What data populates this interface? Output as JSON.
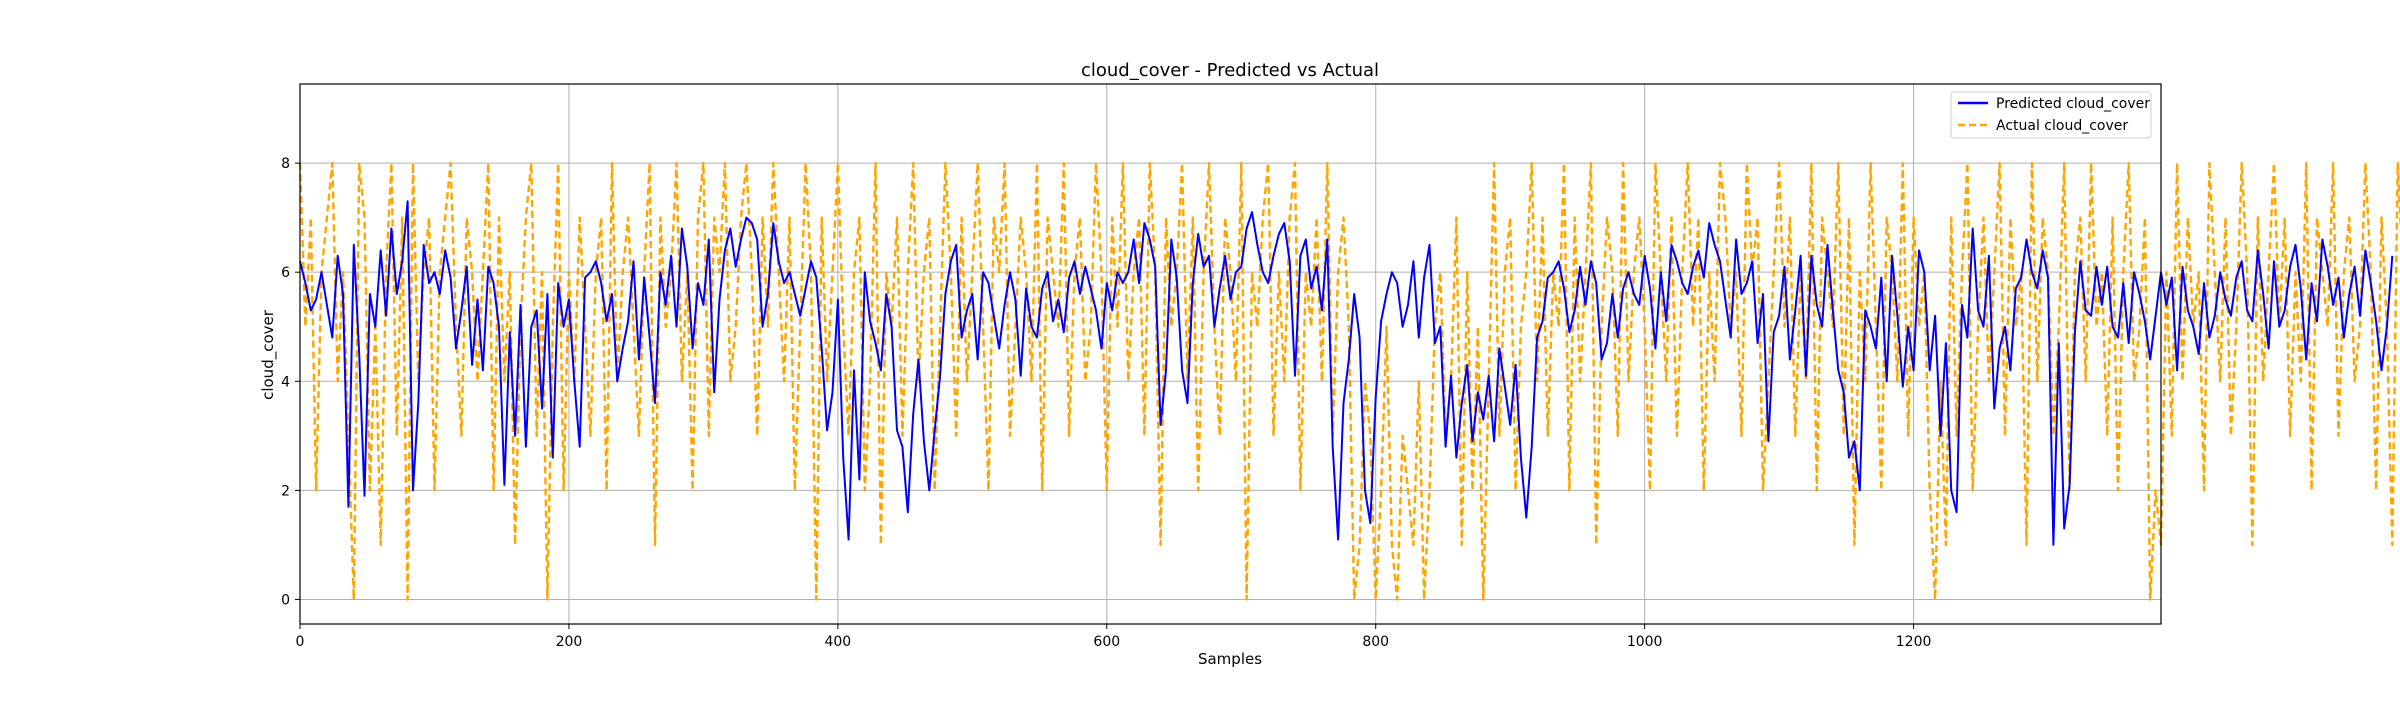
{
  "chart_data": {
    "type": "line",
    "title": "cloud_cover - Predicted vs Actual",
    "xlabel": "Samples",
    "ylabel": "cloud_cover",
    "xlim": [
      0,
      1384
    ],
    "ylim": [
      -0.45,
      9.45
    ],
    "x_ticks": [
      0,
      200,
      400,
      600,
      800,
      1000,
      1200
    ],
    "y_ticks": [
      0,
      2,
      4,
      6,
      8
    ],
    "grid": true,
    "legend_position": "top-right",
    "series": [
      {
        "name": "Predicted cloud_cover",
        "color": "#0000ff",
        "style": "solid",
        "x_step": 4,
        "values": [
          6.2,
          5.8,
          5.3,
          5.5,
          6.0,
          5.4,
          4.8,
          6.3,
          5.6,
          1.7,
          6.5,
          4.5,
          1.9,
          5.6,
          5.0,
          6.4,
          5.2,
          6.8,
          5.6,
          6.2,
          7.3,
          2.0,
          3.6,
          6.5,
          5.8,
          6.0,
          5.6,
          6.4,
          5.9,
          4.6,
          5.3,
          6.1,
          4.3,
          5.5,
          4.2,
          6.1,
          5.8,
          5.0,
          2.1,
          4.9,
          3.0,
          5.4,
          2.8,
          5.0,
          5.3,
          3.5,
          5.6,
          2.6,
          5.8,
          5.0,
          5.5,
          4.0,
          2.8,
          5.9,
          6.0,
          6.2,
          5.8,
          5.1,
          5.6,
          4.0,
          4.6,
          5.1,
          6.2,
          4.4,
          5.9,
          4.8,
          3.6,
          6.0,
          5.4,
          6.3,
          5.0,
          6.8,
          6.1,
          4.6,
          5.8,
          5.4,
          6.6,
          3.8,
          5.5,
          6.4,
          6.8,
          6.1,
          6.6,
          7.0,
          6.9,
          6.6,
          5.0,
          5.6,
          6.9,
          6.2,
          5.8,
          6.0,
          5.6,
          5.2,
          5.7,
          6.2,
          5.9,
          4.6,
          3.1,
          3.8,
          5.5,
          2.6,
          1.1,
          4.2,
          2.2,
          6.0,
          5.1,
          4.7,
          4.2,
          5.6,
          5.0,
          3.1,
          2.8,
          1.6,
          3.4,
          4.4,
          2.9,
          2.0,
          3.1,
          4.1,
          5.6,
          6.2,
          6.5,
          4.8,
          5.3,
          5.6,
          4.4,
          6.0,
          5.8,
          5.2,
          4.6,
          5.4,
          6.0,
          5.5,
          4.1,
          5.7,
          5.0,
          4.8,
          5.7,
          6.0,
          5.1,
          5.5,
          4.9,
          5.9,
          6.2,
          5.6,
          6.1,
          5.7,
          5.3,
          4.6,
          5.8,
          5.3,
          6.0,
          5.8,
          6.0,
          6.6,
          5.8,
          6.9,
          6.6,
          6.1,
          3.2,
          4.2,
          6.6,
          5.9,
          4.2,
          3.6,
          5.8,
          6.7,
          6.1,
          6.3,
          5.0,
          5.7,
          6.3,
          5.5,
          6.0,
          6.1,
          6.8,
          7.1,
          6.5,
          6.0,
          5.8,
          6.3,
          6.7,
          6.9,
          6.2,
          4.1,
          6.3,
          6.6,
          5.7,
          6.1,
          5.3,
          6.6,
          2.8,
          1.1,
          3.6,
          4.4,
          5.6,
          4.8,
          2.0,
          1.4,
          3.7,
          5.1,
          5.6,
          6.0,
          5.8,
          5.0,
          5.4,
          6.2,
          4.8,
          5.9,
          6.5,
          4.7,
          5.0,
          2.8,
          4.1,
          2.6,
          3.6,
          4.3,
          2.9,
          3.8,
          3.3,
          4.1,
          2.9,
          4.6,
          3.9,
          3.2,
          4.3,
          2.6,
          1.5,
          2.8,
          4.8,
          5.1,
          5.9,
          6.0,
          6.2,
          5.7,
          4.9,
          5.3,
          6.1,
          5.4,
          6.2,
          5.8,
          4.4,
          4.7,
          5.6,
          4.8,
          5.7,
          6.0,
          5.6,
          5.4,
          6.3,
          5.7,
          4.6,
          6.0,
          5.1,
          6.5,
          6.2,
          5.8,
          5.6,
          6.1,
          6.4,
          5.9,
          6.9,
          6.5,
          6.2,
          5.5,
          4.8,
          6.6,
          5.6,
          5.8,
          6.2,
          4.7,
          5.6,
          2.9,
          4.9,
          5.2,
          6.1,
          4.4,
          5.3,
          6.3,
          4.1,
          6.3,
          5.4,
          5.0,
          6.5,
          5.3,
          4.2,
          3.8,
          2.6,
          2.9,
          2.0,
          5.3,
          5.0,
          4.6,
          5.9,
          4.0,
          6.3,
          5.2,
          3.9,
          5.0,
          4.2,
          6.4,
          6.0,
          4.2,
          5.2,
          3.0,
          4.7,
          2.0,
          1.6,
          5.4,
          4.8,
          6.8,
          5.3,
          5.0,
          6.3,
          3.5,
          4.6,
          5.0,
          4.2,
          5.7,
          5.9,
          6.6,
          6.0,
          5.7,
          6.4,
          5.9,
          1.0,
          4.7,
          1.3,
          2.1,
          4.9,
          6.2,
          5.3,
          5.2,
          6.1,
          5.4,
          6.1,
          5.0,
          4.8,
          5.8,
          4.7,
          6.0,
          5.6,
          5.1,
          4.4,
          5.2,
          6.0,
          5.4,
          5.9,
          4.2,
          6.1,
          5.3,
          5.0,
          4.5,
          5.8,
          4.8,
          5.2,
          6.0,
          5.5,
          5.2,
          5.9,
          6.2,
          5.3,
          5.1,
          6.4,
          5.6,
          4.6,
          6.2,
          5.0,
          5.3,
          6.1,
          6.5,
          5.7,
          4.4,
          5.8,
          5.1,
          6.6,
          6.1,
          5.4,
          5.9,
          4.8,
          5.6,
          6.1,
          5.2,
          6.4,
          5.8,
          5.1,
          4.2,
          5.0,
          6.3
        ]
      },
      {
        "name": "Actual cloud_cover",
        "color": "#ffa500",
        "style": "dashed",
        "x_step": 4,
        "values": [
          8,
          5,
          7,
          2,
          6,
          7,
          8,
          4,
          6,
          3,
          0,
          8,
          7,
          2,
          5,
          1,
          6,
          8,
          3,
          7,
          0,
          8,
          4,
          6,
          7,
          2,
          6,
          7,
          8,
          5,
          3,
          7,
          6,
          4,
          6,
          8,
          2,
          7,
          4,
          6,
          1,
          5,
          7,
          8,
          3,
          6,
          0,
          5,
          8,
          2,
          6,
          4,
          7,
          5,
          3,
          6,
          7,
          2,
          8,
          4,
          6,
          7,
          5,
          3,
          6,
          8,
          1,
          7,
          5,
          6,
          8,
          4,
          6,
          2,
          7,
          8,
          3,
          7,
          6,
          8,
          4,
          5,
          7,
          8,
          6,
          3,
          7,
          5,
          8,
          6,
          4,
          7,
          2,
          5,
          8,
          6,
          0,
          7,
          4,
          6,
          8,
          5,
          3,
          6,
          7,
          2,
          4,
          8,
          1,
          6,
          5,
          7,
          3,
          6,
          8,
          4,
          6,
          7,
          2,
          5,
          8,
          6,
          3,
          7,
          4,
          6,
          8,
          5,
          2,
          7,
          6,
          8,
          3,
          5,
          7,
          6,
          4,
          8,
          2,
          7,
          6,
          5,
          8,
          3,
          6,
          7,
          4,
          5,
          8,
          6,
          2,
          7,
          5,
          8,
          4,
          6,
          7,
          3,
          8,
          6,
          1,
          7,
          5,
          6,
          8,
          4,
          7,
          2,
          6,
          8,
          5,
          3,
          7,
          6,
          4,
          8,
          0,
          6,
          5,
          7,
          8,
          3,
          6,
          4,
          7,
          8,
          2,
          6,
          5,
          7,
          4,
          8,
          3,
          6,
          7,
          5,
          0,
          1,
          4,
          3,
          0,
          2,
          5,
          1,
          0,
          3,
          2,
          1,
          4,
          0,
          2,
          5,
          6,
          3,
          4,
          7,
          1,
          6,
          2,
          5,
          0,
          4,
          8,
          3,
          6,
          7,
          2,
          5,
          6,
          8,
          4,
          7,
          3,
          6,
          5,
          8,
          2,
          7,
          4,
          6,
          8,
          1,
          5,
          7,
          6,
          3,
          8,
          4,
          6,
          7,
          5,
          2,
          8,
          6,
          4,
          7,
          3,
          6,
          8,
          5,
          7,
          2,
          6,
          4,
          8,
          7,
          5,
          6,
          3,
          8,
          6,
          7,
          2,
          4,
          6,
          8,
          5,
          7,
          3,
          6,
          4,
          8,
          2,
          7,
          6,
          5,
          8,
          3,
          7,
          1,
          6,
          4,
          8,
          5,
          2,
          7,
          6,
          4,
          8,
          3,
          7,
          5,
          6,
          2,
          0,
          4,
          1,
          7,
          3,
          6,
          8,
          2,
          5,
          7,
          4,
          6,
          8,
          3,
          7,
          5,
          6,
          1,
          8,
          4,
          7,
          6,
          3,
          5,
          8,
          2,
          6,
          7,
          4,
          8,
          5,
          6,
          3,
          7,
          2,
          6,
          8,
          4,
          5,
          7,
          0,
          2,
          1,
          6,
          3,
          8,
          4,
          7,
          5,
          6,
          2,
          8,
          6,
          4,
          7,
          3,
          5,
          8,
          6,
          1,
          7,
          4,
          6,
          8,
          5,
          7,
          3,
          6,
          4,
          8,
          2,
          7,
          6,
          5,
          8,
          3,
          6,
          7,
          4,
          5,
          8,
          6,
          2,
          7,
          5,
          1,
          8,
          6,
          4,
          7,
          3,
          6,
          8,
          5,
          2,
          7,
          6,
          8,
          0
        ]
      }
    ]
  }
}
